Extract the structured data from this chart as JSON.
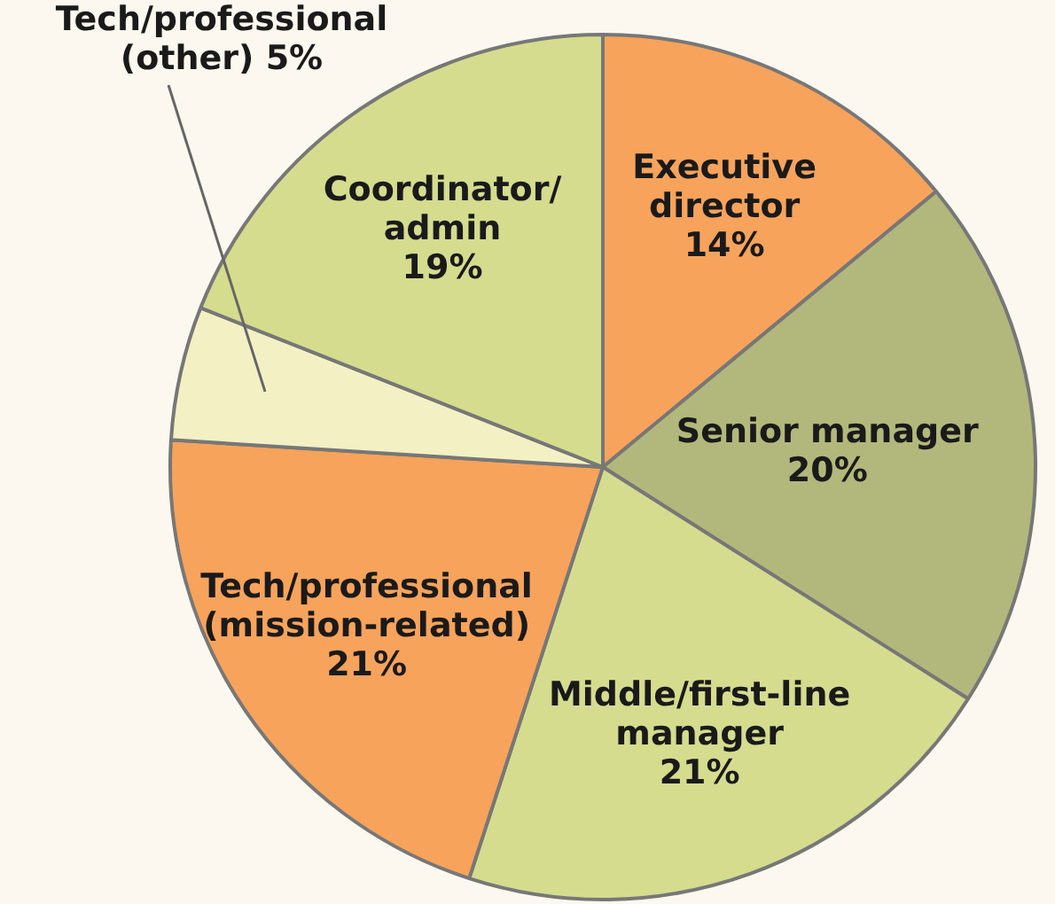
{
  "chart_data": {
    "type": "pie",
    "categories": [
      "Executive\ndirector",
      "Senior manager",
      "Middle/first-line\nmanager",
      "Tech/professional\n(mission-related)",
      "Tech/professional\n(other)",
      "Coordinator/\nadmin"
    ],
    "values": [
      14,
      20,
      21,
      21,
      5,
      19
    ],
    "value_labels": [
      "14%",
      "20%",
      "21%",
      "21%",
      "5%",
      "19%"
    ],
    "colors": [
      "#f7a35c",
      "#b2b87b",
      "#d5dc8e",
      "#f7a35c",
      "#f3f0c4",
      "#d5dc8e"
    ],
    "legend": false
  }
}
